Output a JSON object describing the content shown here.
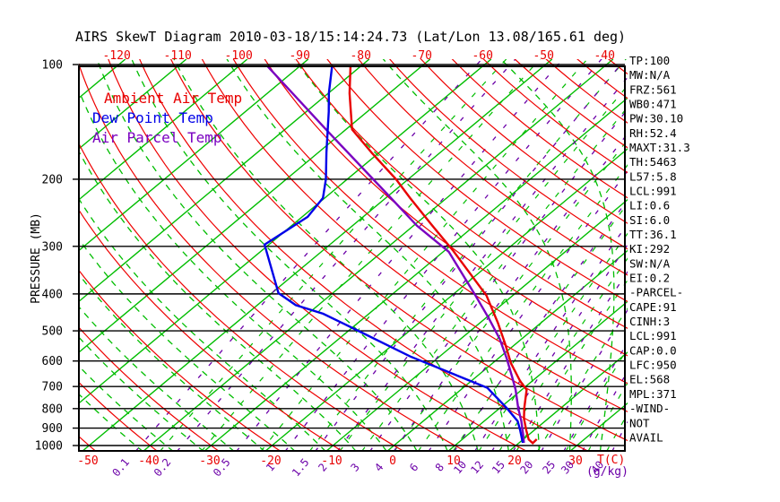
{
  "title": "AIRS SkewT Diagram 2010-03-18/15:14:24.73 (Lat/Lon 13.08/165.61 deg)",
  "legend": {
    "items": [
      {
        "label": "Ambient Air Temp",
        "color": "#e80000"
      },
      {
        "label": "Dew Point Temp",
        "color": "#0000e8"
      },
      {
        "label": "Air Parcel Temp",
        "color": "#7a00c0"
      }
    ]
  },
  "axes": {
    "ylabel": "PRESSURE (MB)",
    "x_unit": "T(C)",
    "mixing_unit": "(g/kg)",
    "pressure_ticks": [
      100,
      200,
      300,
      400,
      500,
      600,
      700,
      800,
      900,
      1000
    ],
    "top_temp_ticks": [
      -120,
      -110,
      -100,
      -90,
      -80,
      -70,
      -60,
      -50,
      -40
    ],
    "bottom_temp_ticks": [
      -50,
      -40,
      -30,
      -20,
      -10,
      0,
      10,
      20,
      30
    ],
    "mixing_ratio_labels": [
      0.1,
      0.2,
      0.5,
      1,
      1.5,
      2,
      3,
      4,
      6,
      8,
      10,
      12,
      15,
      20,
      25,
      30,
      40
    ]
  },
  "stats": [
    "TP:100",
    "MW:N/A",
    "FRZ:561",
    "WB0:471",
    "PW:30.10",
    "RH:52.4",
    "MAXT:31.3",
    "TH:5463",
    "L57:5.8",
    "LCL:991",
    "LI:0.6",
    "SI:6.0",
    "TT:36.1",
    "KI:292",
    "SW:N/A",
    "EI:0.2",
    "-PARCEL-",
    "CAPE:91",
    "CINH:3",
    "LCL:991",
    "CAP:0.0",
    "LFC:950",
    "EL:568",
    "MPL:371",
    "-WIND-",
    "NOT",
    "AVAIL"
  ],
  "colors": {
    "isotherm_green": "#00bd00",
    "adiabat_red": "#ee0000",
    "mixing_purple": "#6b00a8",
    "ambient": "#e80000",
    "dewpoint": "#0000e8",
    "parcel": "#7a00c0",
    "axis_black": "#000000",
    "tick_red": "#e80000"
  },
  "chart_data": {
    "type": "line",
    "subtype": "skewt-logp-sounding",
    "title": "AIRS SkewT Diagram 2010-03-18/15:14:24.73 (Lat/Lon 13.08/165.61 deg)",
    "xlabel": "T(C)",
    "ylabel": "PRESSURE (MB)",
    "pressure_range_mb": [
      100,
      1037
    ],
    "bottom_temp_range_c": [
      -55,
      38
    ],
    "skew": "isotherms slant up-right ~50deg",
    "grid": {
      "isotherms_c": [
        -130,
        -120,
        -110,
        -100,
        -90,
        -80,
        -70,
        -60,
        -50,
        -40,
        -30,
        -20,
        -10,
        0,
        10,
        20,
        30,
        40
      ],
      "dry_adiabats_theta_c": [
        -50,
        -40,
        -30,
        -20,
        -10,
        0,
        10,
        20,
        30,
        40,
        50,
        60,
        70,
        80,
        90,
        100,
        110,
        120,
        130,
        140,
        150,
        160,
        170,
        180
      ],
      "moist_adiabats_thetaw_c": [
        -40,
        -35,
        -30,
        -25,
        -20,
        -15,
        -10,
        -5,
        0,
        5,
        10,
        15,
        20,
        25,
        30,
        35,
        40
      ],
      "mixing_ratio_g_kg": [
        0.1,
        0.2,
        0.5,
        1,
        1.5,
        2,
        3,
        4,
        6,
        8,
        10,
        12,
        15,
        20,
        25,
        30,
        40
      ]
    },
    "series": [
      {
        "name": "Ambient Air Temp",
        "color": "#e80000",
        "points_p_t": [
          [
            100,
            -82
          ],
          [
            119,
            -76.5
          ],
          [
            148,
            -69
          ],
          [
            171,
            -61
          ],
          [
            200,
            -52
          ],
          [
            224,
            -46
          ],
          [
            262,
            -37.5
          ],
          [
            308,
            -28.6
          ],
          [
            404,
            -14.3
          ],
          [
            476,
            -7.1
          ],
          [
            539,
            -1.9
          ],
          [
            608,
            3
          ],
          [
            677,
            8
          ],
          [
            714,
            10.8
          ],
          [
            797,
            14
          ],
          [
            849,
            16
          ],
          [
            912,
            18.7
          ],
          [
            964,
            20.9
          ],
          [
            986,
            22.3
          ],
          [
            963,
            22.2
          ]
        ]
      },
      {
        "name": "Dew Point Temp",
        "color": "#0000e8",
        "points_p_t": [
          [
            101,
            -84.7
          ],
          [
            119,
            -79.9
          ],
          [
            133,
            -76.3
          ],
          [
            170,
            -68.7
          ],
          [
            200,
            -63.5
          ],
          [
            224,
            -60.3
          ],
          [
            251,
            -59.1
          ],
          [
            297,
            -60.7
          ],
          [
            398,
            -48.9
          ],
          [
            428,
            -43.7
          ],
          [
            451,
            -37.5
          ],
          [
            497,
            -28.9
          ],
          [
            584,
            -14.8
          ],
          [
            706,
            4
          ],
          [
            797,
            11.1
          ],
          [
            863,
            15.5
          ],
          [
            912,
            17.7
          ],
          [
            984,
            20.6
          ]
        ]
      },
      {
        "name": "Air Parcel Temp",
        "color": "#7a00c0",
        "points_p_t": [
          [
            101,
            -95.3
          ],
          [
            149,
            -72.9
          ],
          [
            217,
            -51
          ],
          [
            265,
            -39.4
          ],
          [
            310,
            -29.1
          ],
          [
            404,
            -16.1
          ],
          [
            463,
            -9.5
          ],
          [
            525,
            -3.6
          ],
          [
            591,
            1.4
          ],
          [
            659,
            5.8
          ],
          [
            714,
            9
          ],
          [
            797,
            13
          ],
          [
            863,
            16.1
          ],
          [
            935,
            19
          ],
          [
            984,
            20.8
          ]
        ]
      }
    ],
    "annotations_right_panel": [
      "TP:100",
      "MW:N/A",
      "FRZ:561",
      "WB0:471",
      "PW:30.10",
      "RH:52.4",
      "MAXT:31.3",
      "TH:5463",
      "L57:5.8",
      "LCL:991",
      "LI:0.6",
      "SI:6.0",
      "TT:36.1",
      "KI:292",
      "SW:N/A",
      "EI:0.2",
      "-PARCEL-",
      "CAPE:91",
      "CINH:3",
      "LCL:991",
      "CAP:0.0",
      "LFC:950",
      "EL:568",
      "MPL:371",
      "-WIND-",
      "NOT",
      "AVAIL"
    ]
  }
}
